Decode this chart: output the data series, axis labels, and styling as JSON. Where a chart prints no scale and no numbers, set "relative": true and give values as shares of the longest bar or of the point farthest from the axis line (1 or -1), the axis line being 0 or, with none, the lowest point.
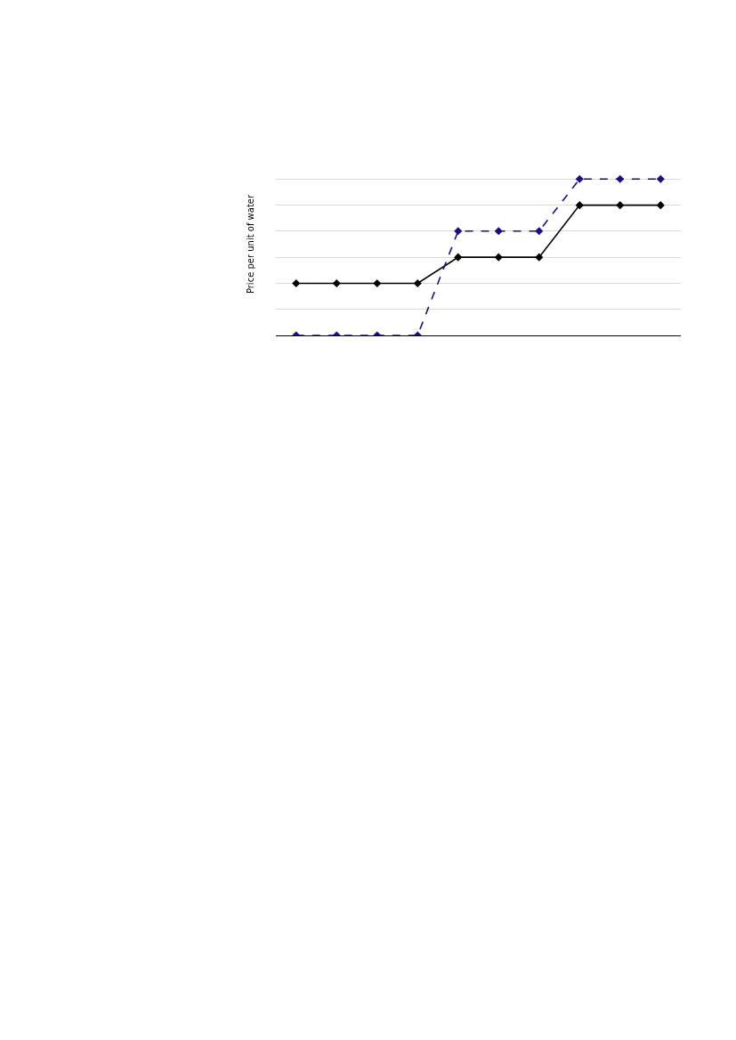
{
  "chart_data": {
    "type": "line",
    "ylabel": "Price per unit of water",
    "relative": true,
    "grid": "y",
    "marker": "diamond",
    "categories": [
      null,
      null,
      null,
      null,
      null,
      null,
      null,
      null,
      null,
      null
    ],
    "series": [
      {
        "color": "#000000",
        "line_style": "solid",
        "values": [
          0.333,
          0.333,
          0.333,
          0.333,
          0.5,
          0.5,
          0.5,
          0.833,
          0.833,
          0.833
        ]
      },
      {
        "color": "#1a0f80",
        "line_style": "dashed",
        "values": [
          0,
          0,
          0,
          0,
          0.667,
          0.667,
          0.667,
          1,
          1,
          1
        ]
      }
    ]
  }
}
